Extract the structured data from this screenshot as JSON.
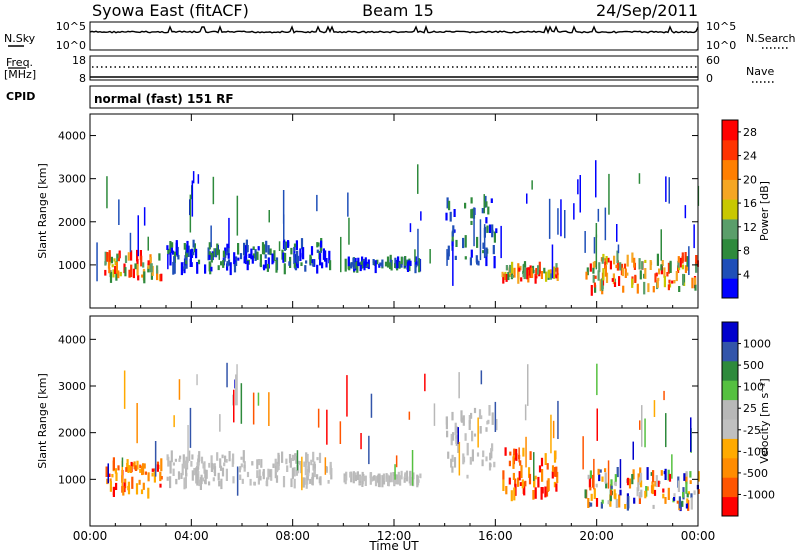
{
  "header": {
    "station": "Syowa East (fitACF)",
    "beam": "Beam 15",
    "date": "24/Sep/2011"
  },
  "status_panels": {
    "nsky_label": "N.Sky",
    "nsky_ticks": [
      "10^5",
      "10^0"
    ],
    "nsearch_label": "N.Search",
    "nsearch_ticks": [
      "10^5",
      "10^0"
    ],
    "freq_label": "Freq.",
    "freq_unit": "[MHz]",
    "freq_ticks": [
      "18",
      "8"
    ],
    "nave_label": "Nave",
    "nave_ticks": [
      "60",
      "0"
    ],
    "cpid_label": "CPID",
    "cpid_text": "normal (fast) 151 RF"
  },
  "colors": {
    "power_scale": [
      "#0000ff",
      "#1f4fb8",
      "#2e8a3c",
      "#5a9e6a",
      "#c8c800",
      "#f5a623",
      "#ff7f00",
      "#ff3300",
      "#ff0000"
    ],
    "velocity_scale": [
      "#ff0000",
      "#ff5500",
      "#ff8c00",
      "#ffaa00",
      "#c0c0c0",
      "#b8b8b8",
      "#55c040",
      "#2e8a3c",
      "#3355aa",
      "#0000cc"
    ]
  },
  "chart_data": [
    {
      "type": "heatmap",
      "name": "power-panel",
      "ylabel": "Slant Range [km]",
      "yticks": [
        "4000",
        "3000",
        "2000",
        "1000"
      ],
      "ylim": [
        0,
        4500
      ],
      "xlim": [
        "00:00",
        "24:00"
      ],
      "colorbar_label": "Power [dB]",
      "colorbar_ticks": [
        "28",
        "24",
        "20",
        "16",
        "12",
        "8",
        "4"
      ],
      "colorbar_range": [
        0,
        30
      ],
      "echo_bands": [
        {
          "t_start": 0.5,
          "t_end": 2.8,
          "range_low": 700,
          "range_high": 1250,
          "level": "high"
        },
        {
          "t_start": 3.0,
          "t_end": 9.5,
          "range_low": 900,
          "range_high": 1500,
          "level": "low"
        },
        {
          "t_start": 10.0,
          "t_end": 13.0,
          "range_low": 950,
          "range_high": 1100,
          "level": "low"
        },
        {
          "t_start": 14.0,
          "t_end": 16.0,
          "range_low": 1000,
          "range_high": 2500,
          "level": "low"
        },
        {
          "t_start": 16.2,
          "t_end": 18.5,
          "range_low": 650,
          "range_high": 950,
          "level": "high"
        },
        {
          "t_start": 19.5,
          "t_end": 24.0,
          "range_low": 400,
          "range_high": 1200,
          "level": "high"
        }
      ]
    },
    {
      "type": "heatmap",
      "name": "velocity-panel",
      "xlabel": "Time UT",
      "xticks": [
        "00:00",
        "04:00",
        "08:00",
        "12:00",
        "16:00",
        "20:00",
        "00:00"
      ],
      "ylabel": "Slant Range [km]",
      "yticks": [
        "4000",
        "3000",
        "2000",
        "1000"
      ],
      "ylim": [
        0,
        4500
      ],
      "colorbar_label": "Velocity [m s⁻¹]",
      "colorbar_ticks": [
        "1000",
        "500",
        "100",
        "25",
        "-25",
        "-100",
        "-500",
        "-1000"
      ],
      "echo_bands": [
        {
          "t_start": 0.5,
          "t_end": 2.8,
          "range_low": 700,
          "range_high": 1350,
          "level": "negative"
        },
        {
          "t_start": 3.0,
          "t_end": 9.5,
          "range_low": 900,
          "range_high": 1500,
          "level": "ground"
        },
        {
          "t_start": 10.0,
          "t_end": 13.0,
          "range_low": 950,
          "range_high": 1100,
          "level": "ground"
        },
        {
          "t_start": 14.0,
          "t_end": 16.0,
          "range_low": 1000,
          "range_high": 2500,
          "level": "ground"
        },
        {
          "t_start": 16.2,
          "t_end": 18.5,
          "range_low": 650,
          "range_high": 1600,
          "level": "negative"
        },
        {
          "t_start": 19.5,
          "t_end": 24.0,
          "range_low": 400,
          "range_high": 1200,
          "level": "mixed"
        }
      ]
    }
  ]
}
